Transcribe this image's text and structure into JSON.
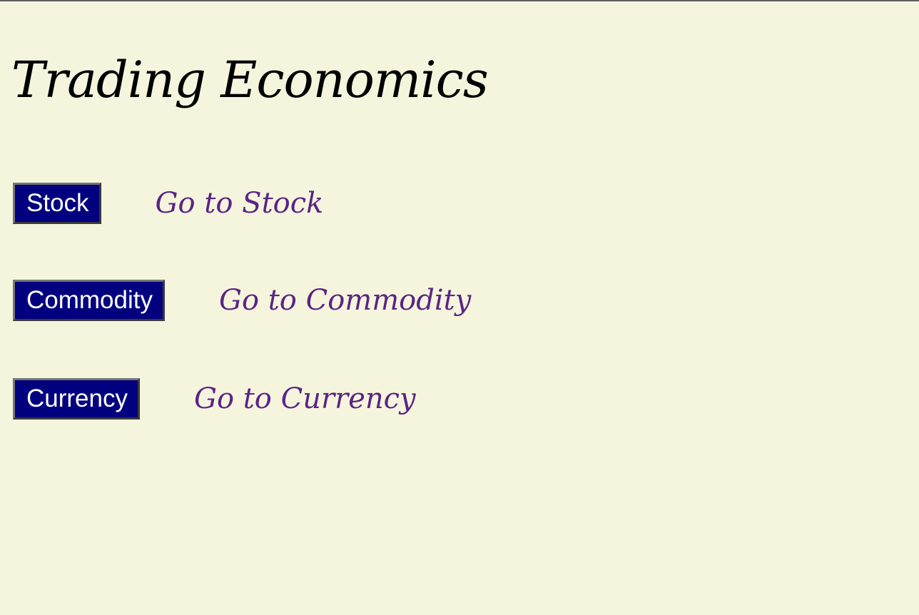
{
  "header": {
    "title": "Trading Economics"
  },
  "nav": {
    "items": [
      {
        "button_label": "Stock",
        "link_text": "Go to Stock"
      },
      {
        "button_label": "Commodity",
        "link_text": "Go to Commodity"
      },
      {
        "button_label": "Currency",
        "link_text": "Go to Currency"
      }
    ]
  },
  "colors": {
    "background": "#f5f5dd",
    "button_bg": "#02007f",
    "button_text": "#ffffff",
    "link": "#5a2584",
    "title": "#000000"
  }
}
